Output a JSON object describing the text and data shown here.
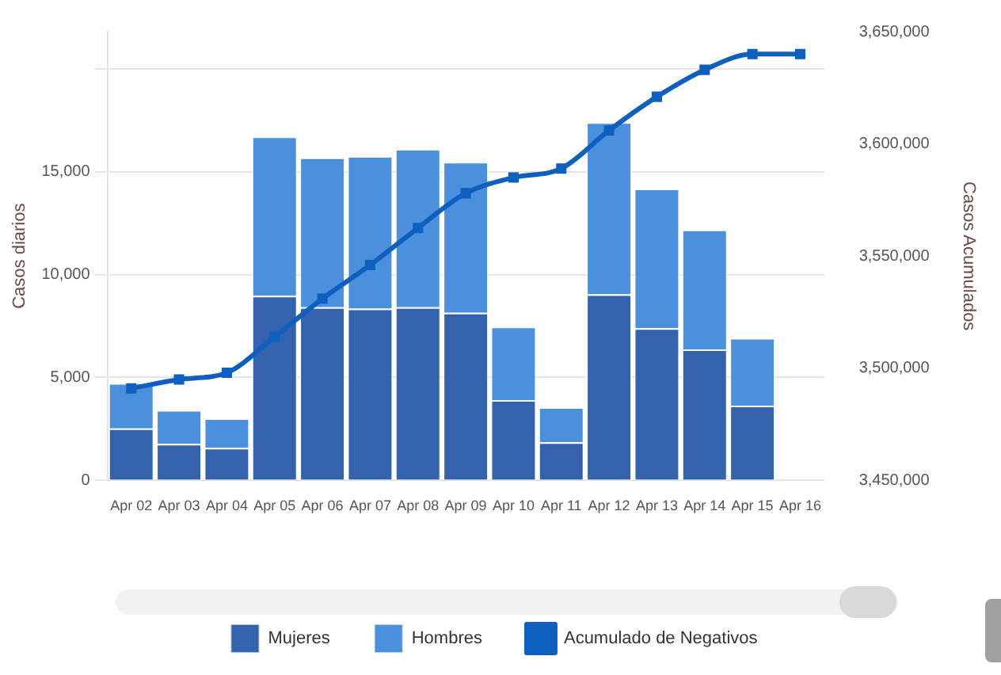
{
  "chart_data": {
    "type": "bar",
    "stacked": true,
    "categories": [
      "Apr 02",
      "Apr 03",
      "Apr 04",
      "Apr 05",
      "Apr 06",
      "Apr 07",
      "Apr 08",
      "Apr 09",
      "Apr 10",
      "Apr 11",
      "Apr 12",
      "Apr 13",
      "Apr 14",
      "Apr 15",
      "Apr 16"
    ],
    "series": [
      {
        "name": "Mujeres",
        "color": "#3462ad",
        "values": [
          2530,
          1780,
          1580,
          8970,
          8420,
          8350,
          8420,
          8150,
          3900,
          1850,
          9040,
          7400,
          6370,
          3630,
          null
        ]
      },
      {
        "name": "Hombres",
        "color": "#4a90dc",
        "values": [
          2200,
          1640,
          1440,
          7740,
          7270,
          7410,
          7680,
          7330,
          3570,
          1710,
          8360,
          6780,
          5820,
          3290,
          null
        ]
      },
      {
        "name": "Acumulado de Negativos",
        "type": "line",
        "axis": "y2",
        "color": "#0d5fc0",
        "marker": "square",
        "values": [
          3491000,
          3495000,
          3498000,
          3514000,
          3531000,
          3546000,
          3562500,
          3578000,
          3585000,
          3589000,
          3606000,
          3621000,
          3633000,
          3640000,
          3640000
        ]
      }
    ],
    "ylabel": "Casos diarios",
    "y2label": "Casos Acumulados",
    "ylim": [
      0,
      21800
    ],
    "yticks": [
      0,
      {
        "value": 5000,
        "label": "5,000"
      },
      {
        "value": 10000,
        "label": "10,000"
      },
      {
        "value": 15000,
        "label": "15,000"
      },
      {
        "value": 20000,
        "label": null
      }
    ],
    "y2lim": [
      3450000,
      3650000
    ],
    "y2ticks": [
      {
        "value": 3450000,
        "label": "3,450,000"
      },
      {
        "value": 3500000,
        "label": "3,500,000"
      },
      {
        "value": 3550000,
        "label": "3,550,000"
      },
      {
        "value": 3600000,
        "label": "3,600,000"
      },
      {
        "value": 3650000,
        "label": "3,650,000"
      }
    ],
    "grid": "y",
    "legend": "bottom"
  }
}
